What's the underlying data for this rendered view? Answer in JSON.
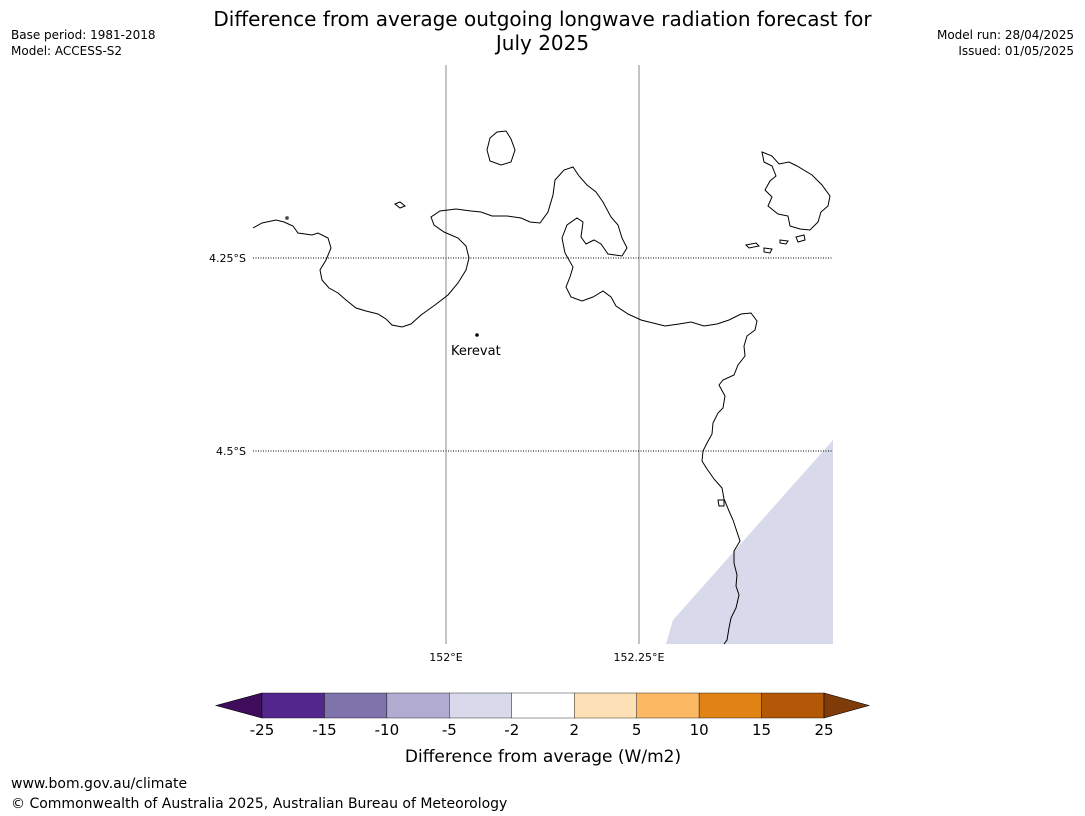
{
  "title_line1": "Difference from average outgoing longwave radiation forecast for",
  "title_line2": "July 2025",
  "base_period": "Base period: 1981-2018",
  "model": "Model: ACCESS-S2",
  "model_run": "Model run: 28/04/2025",
  "issued": "Issued: 01/05/2025",
  "map": {
    "lat_labels": [
      "4.25°S",
      "4.5°S"
    ],
    "lon_labels": [
      "152°E",
      "152.25°E"
    ],
    "places": [
      {
        "name": "Kerevat"
      }
    ],
    "shaded_category": "-5 to -2"
  },
  "colorbar": {
    "label": "Difference from average (W/m2)",
    "ticks": [
      "-25",
      "-15",
      "-10",
      "-5",
      "-2",
      "2",
      "5",
      "10",
      "15",
      "25"
    ],
    "colors": [
      "#3f0d5c",
      "#54278f",
      "#8073ac",
      "#b2abd2",
      "#d8daeb",
      "#ffffff",
      "#fee0b6",
      "#fdb863",
      "#e08214",
      "#b35806",
      "#7f3b08"
    ]
  },
  "footer_url": "www.bom.gov.au/climate",
  "footer_copyright": "© Commonwealth of Australia 2025, Australian Bureau of Meteorology"
}
